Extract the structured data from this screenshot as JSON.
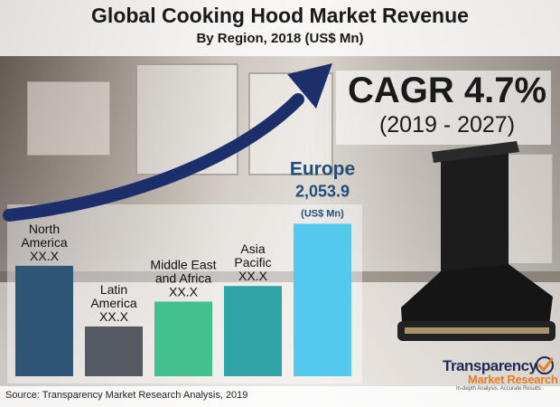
{
  "chart_data": {
    "type": "bar",
    "title": "Global Cooking Hood Market Revenue",
    "subtitle": "By Region, 2018 (US$ Mn)",
    "categories": [
      "North America",
      "Latin America",
      "Middle East and Africa",
      "Asia Pacific",
      "Europe"
    ],
    "bar_labels": [
      [
        "North",
        "America",
        "XX.X"
      ],
      [
        "Latin",
        "America",
        "XX.X"
      ],
      [
        "Middle East",
        "and Africa",
        "XX.X"
      ],
      [
        "Asia",
        "Pacific",
        "XX.X"
      ],
      [
        "Europe",
        "2,053.9",
        "(US$ Mn)"
      ]
    ],
    "relative_heights": [
      0.71,
      0.32,
      0.48,
      0.58,
      0.98
    ],
    "colors": [
      "#2f5577",
      "#545a60",
      "#43c18c",
      "#2ea4a7",
      "#55c8ee"
    ],
    "highlight": {
      "category": "Europe",
      "value": 2053.9,
      "label_color": "#1f4e79"
    },
    "cagr": {
      "label": "CAGR 4.7%",
      "period": "(2019 - 2027)"
    },
    "arrow_color": "#1d2f6b"
  },
  "source": "Source: Transparency Market Research Analysis, 2019",
  "logo": {
    "name_line1": "Transparency",
    "name_line2": "Market Research",
    "tagline": "In-depth Analysis. Accurate Results",
    "colors": {
      "primary": "#1f2a55",
      "accent": "#e67e22"
    }
  }
}
